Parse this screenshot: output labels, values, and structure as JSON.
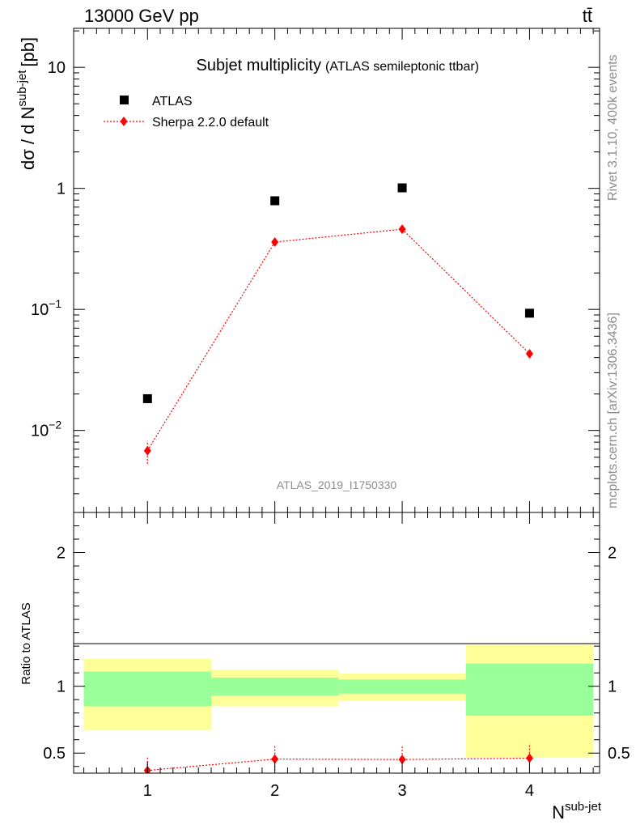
{
  "header": {
    "energy_label": "13000 GeV pp",
    "process_label": "tt̄"
  },
  "side_text": {
    "rivet": "Rivet 3.1.10,  400k events",
    "source": "mcplots.cern.ch [arXiv:1306.3436]"
  },
  "watermark": "ATLAS_2019_I1750330",
  "colors": {
    "data": "#000000",
    "mc": "#ff0000",
    "band_inner": "#99ff99",
    "band_outer": "#ffff99"
  },
  "chart_data": [
    {
      "type": "scatter",
      "panel": "main",
      "title": "Subjet multiplicity",
      "subtitle": "(ATLAS semileptonic ttbar)",
      "ylabel": "dσ / d N",
      "ylabel_sup": "sub-jet",
      "ylabel_unit": "[pb]",
      "y_scale": "log",
      "ylim": [
        0.0021,
        21
      ],
      "xlim": [
        0.42,
        4.55
      ],
      "y_ticks": [
        {
          "value": 10,
          "label": "10"
        },
        {
          "value": 1,
          "label": "1"
        },
        {
          "value": 0.1,
          "label": "10",
          "exp": "−1"
        },
        {
          "value": 0.01,
          "label": "10",
          "exp": "−2"
        }
      ],
      "legend_position": "top-left",
      "series": [
        {
          "name": "ATLAS",
          "marker": "square",
          "color": "#000000",
          "x": [
            1,
            2,
            3,
            4
          ],
          "y": [
            0.0183,
            0.79,
            1.01,
            0.093
          ]
        },
        {
          "name": "Sherpa 2.2.0 default",
          "marker": "diamond",
          "line": "dotted",
          "color": "#ff0000",
          "x": [
            1,
            2,
            3,
            4
          ],
          "y": [
            0.0068,
            0.36,
            0.46,
            0.043
          ],
          "err_low": [
            0.0053,
            0.345,
            0.445,
            0.041
          ],
          "err_high": [
            0.0082,
            0.375,
            0.475,
            0.045
          ]
        }
      ]
    },
    {
      "type": "scatter",
      "panel": "ratio",
      "ylabel": "Ratio to ATLAS",
      "xlabel": "N",
      "xlabel_sup": "sub-jet",
      "ylim": [
        0.35,
        2.3
      ],
      "xlim": [
        0.42,
        4.55
      ],
      "x_ticks": [
        "1",
        "2",
        "3",
        "4"
      ],
      "y_ticks": [
        "0.5",
        "1",
        "2"
      ],
      "reference_line": 1,
      "bands": [
        {
          "x0": 0.5,
          "x1": 1.5,
          "inner": [
            0.85,
            1.11
          ],
          "outer": [
            0.67,
            1.205
          ]
        },
        {
          "x0": 1.5,
          "x1": 2.5,
          "inner": [
            0.93,
            1.065
          ],
          "outer": [
            0.85,
            1.125
          ]
        },
        {
          "x0": 2.5,
          "x1": 3.5,
          "inner": [
            0.945,
            1.05
          ],
          "outer": [
            0.89,
            1.095
          ]
        },
        {
          "x0": 3.5,
          "x1": 4.5,
          "inner": [
            0.78,
            1.17
          ],
          "outer": [
            0.465,
            1.31
          ]
        }
      ],
      "series": [
        {
          "name": "Sherpa 2.2.0 default",
          "color": "#ff0000",
          "x": [
            1,
            2,
            3,
            4
          ],
          "y": [
            0.37,
            0.455,
            0.452,
            0.462
          ]
        }
      ]
    }
  ]
}
